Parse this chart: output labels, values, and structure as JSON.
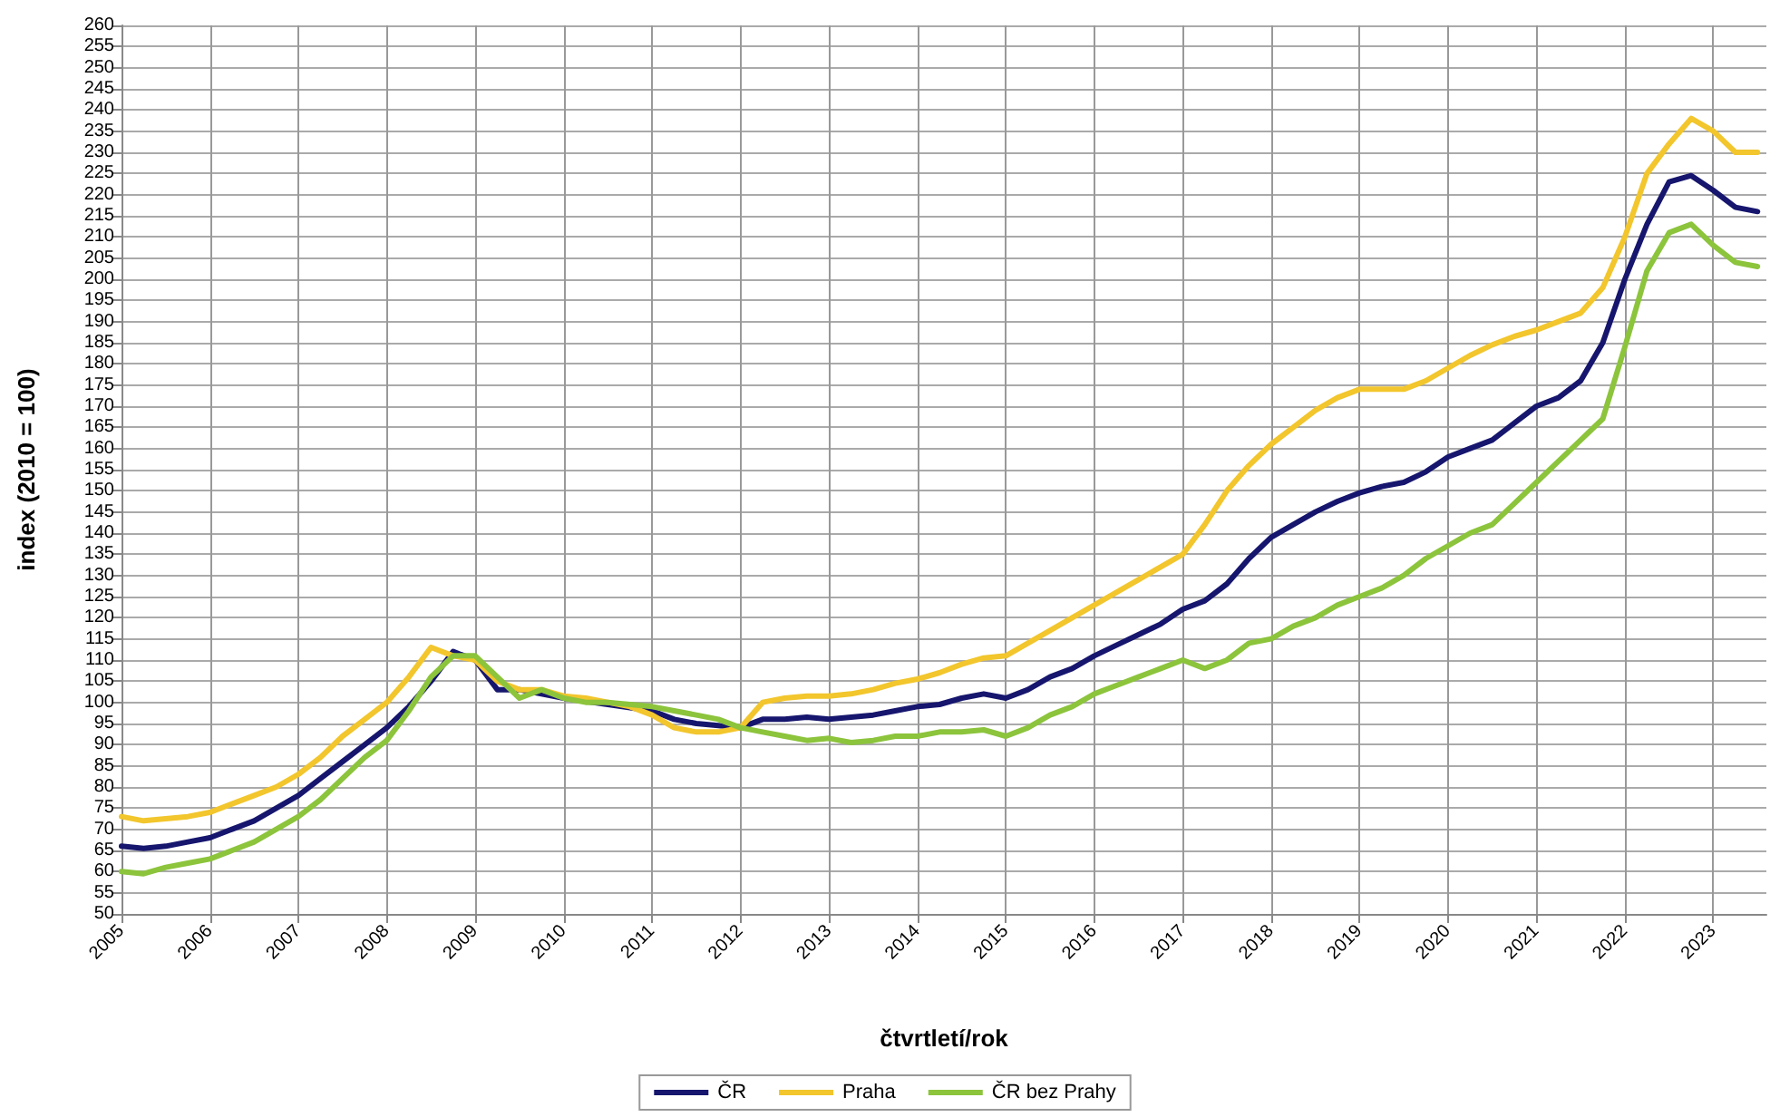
{
  "chart_data": {
    "type": "line",
    "xlabel": "čtvrtletí/rok",
    "ylabel": "index (2010 = 100)",
    "x": [
      2005,
      2005.25,
      2005.5,
      2005.75,
      2006,
      2006.25,
      2006.5,
      2006.75,
      2007,
      2007.25,
      2007.5,
      2007.75,
      2008,
      2008.25,
      2008.5,
      2008.75,
      2009,
      2009.25,
      2009.5,
      2009.75,
      2010,
      2010.25,
      2010.5,
      2010.75,
      2011,
      2011.25,
      2011.5,
      2011.75,
      2012,
      2012.25,
      2012.5,
      2012.75,
      2013,
      2013.25,
      2013.5,
      2013.75,
      2014,
      2014.25,
      2014.5,
      2014.75,
      2015,
      2015.25,
      2015.5,
      2015.75,
      2016,
      2016.25,
      2016.5,
      2016.75,
      2017,
      2017.25,
      2017.5,
      2017.75,
      2018,
      2018.25,
      2018.5,
      2018.75,
      2019,
      2019.25,
      2019.5,
      2019.75,
      2020,
      2020.25,
      2020.5,
      2020.75,
      2021,
      2021.25,
      2021.5,
      2021.75,
      2022,
      2022.25,
      2022.5,
      2022.75,
      2023,
      2023.25,
      2023.5
    ],
    "series": [
      {
        "name": "ČR",
        "color": "#16166e",
        "values": [
          66,
          65.5,
          66,
          67,
          68,
          70,
          72,
          75,
          78,
          82,
          86,
          90,
          94,
          99,
          105,
          112,
          110,
          103,
          103,
          102,
          101,
          null,
          null,
          null,
          98,
          96,
          95,
          94.5,
          94,
          96,
          96,
          96.5,
          96,
          96.5,
          97,
          98,
          99,
          99.5,
          101,
          102,
          101,
          103,
          106,
          108,
          111,
          113.5,
          116,
          118.5,
          122,
          124,
          128,
          134,
          139,
          142,
          145,
          147.5,
          149.5,
          151,
          152,
          154.5,
          158,
          160,
          162,
          166,
          170,
          172,
          176,
          185,
          200,
          213,
          223,
          224.5,
          221,
          217,
          216
        ]
      },
      {
        "name": "Praha",
        "color": "#f2c62c",
        "values": [
          73,
          72,
          72.5,
          73,
          74,
          76,
          78,
          80,
          83,
          87,
          92,
          96,
          100,
          106,
          113,
          111,
          110,
          105,
          103,
          103,
          101.5,
          101,
          100,
          99,
          97,
          94,
          93,
          93,
          94,
          100,
          101,
          101.5,
          101.5,
          102,
          103,
          104.5,
          105.5,
          107,
          109,
          110.5,
          111,
          114,
          117,
          120,
          123,
          126,
          129,
          132,
          135,
          142,
          150,
          156,
          161,
          165,
          169,
          172,
          174,
          174,
          174,
          176,
          179,
          182,
          184.5,
          186.5,
          188,
          190,
          192,
          198,
          210,
          225,
          232,
          238,
          235,
          230,
          230
        ]
      },
      {
        "name": "ČR bez Prahy",
        "color": "#8cc43c",
        "values": [
          60,
          59.5,
          61,
          62,
          63,
          65,
          67,
          70,
          73,
          77,
          82,
          87,
          91,
          98,
          106,
          111,
          111,
          106,
          101,
          103,
          101,
          100,
          100,
          99.5,
          99,
          98,
          97,
          96,
          94,
          93,
          92,
          91,
          91.5,
          90.5,
          91,
          92,
          92,
          93,
          93,
          93.5,
          92,
          94,
          97,
          99,
          102,
          104,
          106,
          108,
          110,
          108,
          110,
          114,
          115,
          118,
          120,
          123,
          125,
          127,
          130,
          134,
          137,
          140,
          142,
          147,
          152,
          157,
          162,
          167,
          184,
          202,
          211,
          213,
          208,
          204,
          203
        ]
      }
    ],
    "xlim": [
      2005,
      2023.6
    ],
    "xticks": [
      2005,
      2006,
      2007,
      2008,
      2009,
      2010,
      2011,
      2012,
      2013,
      2014,
      2015,
      2016,
      2017,
      2018,
      2019,
      2020,
      2021,
      2022,
      2023
    ],
    "ylim": [
      50,
      260
    ],
    "yticks": [
      50,
      55,
      60,
      65,
      70,
      75,
      80,
      85,
      90,
      95,
      100,
      105,
      110,
      115,
      120,
      125,
      130,
      135,
      140,
      145,
      150,
      155,
      160,
      165,
      170,
      175,
      180,
      185,
      190,
      195,
      200,
      205,
      210,
      215,
      220,
      225,
      230,
      235,
      240,
      245,
      250,
      255,
      260
    ],
    "grid": true,
    "legend": "bottom",
    "marker": "none",
    "line_style": "solid"
  }
}
